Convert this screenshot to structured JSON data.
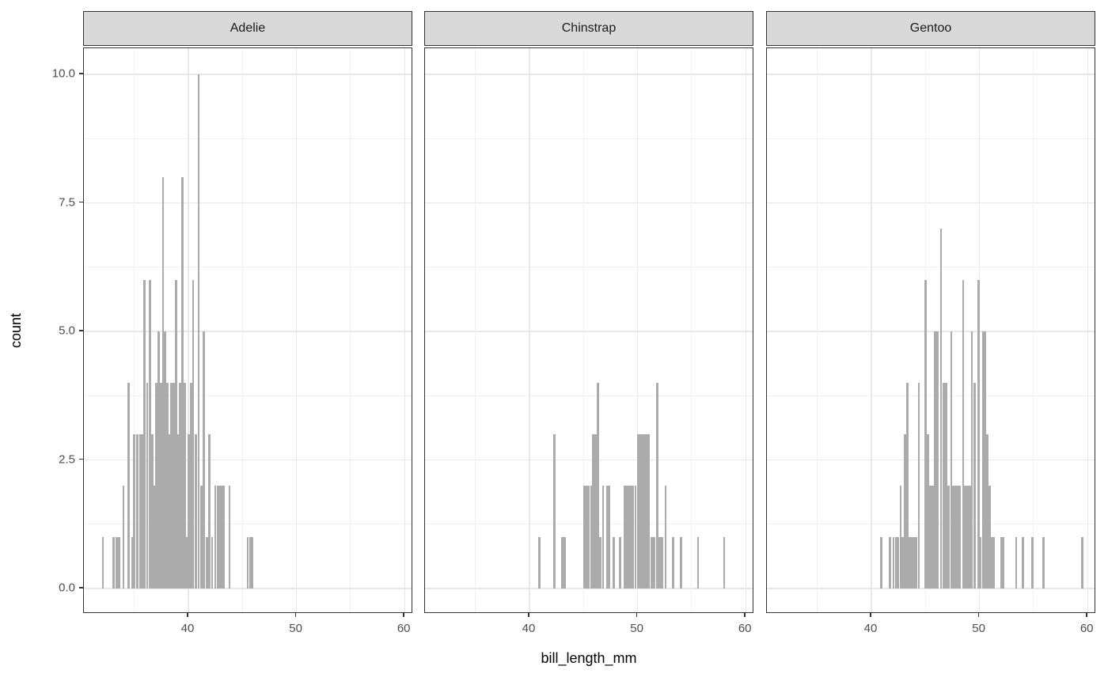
{
  "chart_data": {
    "type": "bar",
    "variant": "faceted-histogram",
    "title": "",
    "xlabel": "bill_length_mm",
    "ylabel": "count",
    "legend_position": "none",
    "grid": true,
    "xlim": [
      30.3,
      60.8
    ],
    "ylim": [
      -0.5,
      10.5
    ],
    "x_major_ticks": [
      40,
      50,
      60
    ],
    "x_minor_gridlines": [
      35,
      45,
      55
    ],
    "y_major_ticks": [
      0,
      2.5,
      5,
      7.5,
      10
    ],
    "y_tick_labels": [
      "0.0",
      "2.5",
      "5.0",
      "7.5",
      "10.0"
    ],
    "y_minor_gridlines": [
      1.25,
      3.75,
      6.25,
      8.75
    ],
    "bin_width_mm": 0.2,
    "facets": [
      {
        "label": "Adelie",
        "bars": [
          [
            32.1,
            1
          ],
          [
            33.1,
            1
          ],
          [
            33.35,
            1
          ],
          [
            33.6,
            1
          ],
          [
            34.0,
            2
          ],
          [
            34.45,
            4
          ],
          [
            34.8,
            1
          ],
          [
            35.0,
            3
          ],
          [
            35.3,
            3
          ],
          [
            35.55,
            3
          ],
          [
            35.75,
            3
          ],
          [
            35.95,
            6
          ],
          [
            36.2,
            4
          ],
          [
            36.45,
            6
          ],
          [
            36.65,
            3
          ],
          [
            36.85,
            2
          ],
          [
            37.05,
            4
          ],
          [
            37.25,
            5
          ],
          [
            37.45,
            4
          ],
          [
            37.65,
            8
          ],
          [
            37.85,
            5
          ],
          [
            38.05,
            4
          ],
          [
            38.25,
            3
          ],
          [
            38.45,
            4
          ],
          [
            38.65,
            4
          ],
          [
            38.85,
            6
          ],
          [
            39.05,
            3
          ],
          [
            39.25,
            4
          ],
          [
            39.45,
            8
          ],
          [
            39.65,
            4
          ],
          [
            39.85,
            1
          ],
          [
            40.05,
            3
          ],
          [
            40.25,
            4
          ],
          [
            40.45,
            6
          ],
          [
            40.7,
            3
          ],
          [
            40.95,
            10
          ],
          [
            41.2,
            2
          ],
          [
            41.45,
            5
          ],
          [
            41.7,
            1
          ],
          [
            41.95,
            3
          ],
          [
            42.2,
            1
          ],
          [
            42.5,
            2
          ],
          [
            42.7,
            2
          ],
          [
            42.9,
            2
          ],
          [
            43.1,
            2
          ],
          [
            43.3,
            2
          ],
          [
            43.8,
            2
          ],
          [
            45.5,
            1
          ],
          [
            45.7,
            1
          ],
          [
            45.9,
            1
          ]
        ]
      },
      {
        "label": "Chinstrap",
        "bars": [
          [
            40.9,
            1
          ],
          [
            42.3,
            3
          ],
          [
            43.05,
            1
          ],
          [
            43.25,
            1
          ],
          [
            45.1,
            2
          ],
          [
            45.3,
            2
          ],
          [
            45.5,
            2
          ],
          [
            45.7,
            2
          ],
          [
            45.9,
            3
          ],
          [
            46.1,
            3
          ],
          [
            46.35,
            4
          ],
          [
            46.55,
            1
          ],
          [
            46.8,
            2
          ],
          [
            47.2,
            2
          ],
          [
            47.4,
            2
          ],
          [
            47.8,
            1
          ],
          [
            48.4,
            1
          ],
          [
            48.8,
            2
          ],
          [
            49.0,
            2
          ],
          [
            49.2,
            2
          ],
          [
            49.4,
            2
          ],
          [
            49.6,
            2
          ],
          [
            49.8,
            2
          ],
          [
            50.05,
            3
          ],
          [
            50.25,
            3
          ],
          [
            50.45,
            3
          ],
          [
            50.65,
            3
          ],
          [
            50.85,
            3
          ],
          [
            51.05,
            3
          ],
          [
            51.3,
            1
          ],
          [
            51.55,
            1
          ],
          [
            51.8,
            4
          ],
          [
            52.05,
            1
          ],
          [
            52.25,
            1
          ],
          [
            52.6,
            2
          ],
          [
            53.3,
            1
          ],
          [
            54.0,
            1
          ],
          [
            55.6,
            1
          ],
          [
            58.0,
            1
          ]
        ]
      },
      {
        "label": "Gentoo",
        "bars": [
          [
            40.9,
            1
          ],
          [
            41.7,
            1
          ],
          [
            42.05,
            1
          ],
          [
            42.3,
            1
          ],
          [
            42.5,
            1
          ],
          [
            42.7,
            2
          ],
          [
            42.9,
            1
          ],
          [
            43.1,
            3
          ],
          [
            43.35,
            4
          ],
          [
            43.55,
            1
          ],
          [
            43.75,
            1
          ],
          [
            43.95,
            1
          ],
          [
            44.15,
            1
          ],
          [
            44.4,
            4
          ],
          [
            45.0,
            6
          ],
          [
            45.25,
            3
          ],
          [
            45.45,
            2
          ],
          [
            45.65,
            2
          ],
          [
            45.9,
            5
          ],
          [
            46.1,
            5
          ],
          [
            46.45,
            7
          ],
          [
            46.7,
            4
          ],
          [
            46.9,
            4
          ],
          [
            47.15,
            2
          ],
          [
            47.4,
            5
          ],
          [
            47.6,
            2
          ],
          [
            47.8,
            2
          ],
          [
            48.0,
            2
          ],
          [
            48.2,
            2
          ],
          [
            48.5,
            6
          ],
          [
            48.7,
            2
          ],
          [
            48.9,
            2
          ],
          [
            49.1,
            2
          ],
          [
            49.3,
            5
          ],
          [
            49.55,
            4
          ],
          [
            49.9,
            6
          ],
          [
            50.1,
            1
          ],
          [
            50.35,
            5
          ],
          [
            50.55,
            5
          ],
          [
            50.75,
            3
          ],
          [
            50.95,
            2
          ],
          [
            51.15,
            1
          ],
          [
            51.35,
            1
          ],
          [
            52.0,
            1
          ],
          [
            52.2,
            1
          ],
          [
            53.4,
            1
          ],
          [
            54.0,
            1
          ],
          [
            54.9,
            1
          ],
          [
            55.9,
            1
          ],
          [
            59.5,
            1
          ]
        ]
      }
    ],
    "colors": {
      "bar": "#ABABAB",
      "strip_bg": "#D9D9D9",
      "strip_text": "#1A1A1A",
      "panel_border": "#333333",
      "grid_major": "#E8E8E8",
      "grid_minor": "#F1F1F1",
      "tick_mark": "#333333",
      "tick_label": "#4D4D4D",
      "axis_title": "#000000",
      "background": "#FFFFFF"
    }
  }
}
